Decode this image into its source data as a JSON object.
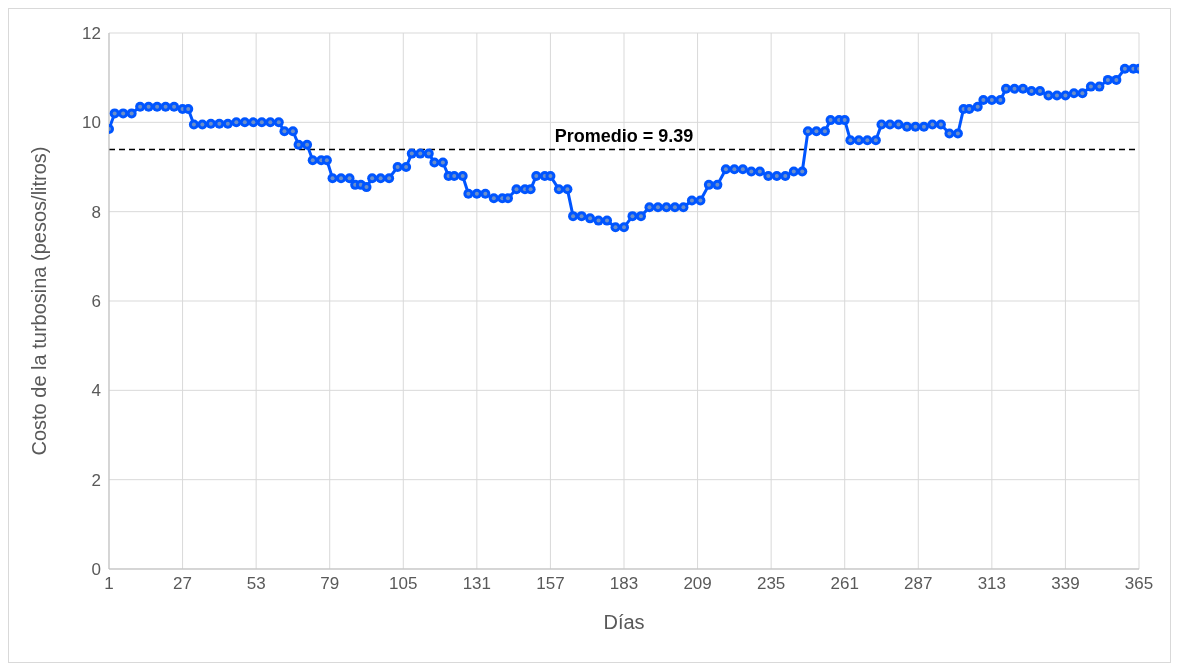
{
  "chart_data": {
    "type": "line",
    "xlabel": "Días",
    "ylabel": "Costo de la turbosina (pesos/litros)",
    "x": [
      1,
      3,
      6,
      9,
      12,
      15,
      18,
      21,
      24,
      27,
      29,
      31,
      34,
      37,
      40,
      43,
      46,
      49,
      52,
      55,
      58,
      61,
      63,
      66,
      68,
      71,
      73,
      76,
      78,
      80,
      83,
      86,
      88,
      90,
      92,
      94,
      97,
      100,
      103,
      106,
      108,
      111,
      114,
      116,
      119,
      121,
      123,
      126,
      128,
      131,
      134,
      137,
      140,
      142,
      145,
      148,
      150,
      152,
      155,
      157,
      160,
      163,
      165,
      168,
      171,
      174,
      177,
      180,
      183,
      186,
      189,
      192,
      195,
      198,
      201,
      204,
      207,
      210,
      213,
      216,
      219,
      222,
      225,
      228,
      231,
      234,
      237,
      240,
      243,
      246,
      248,
      251,
      254,
      256,
      259,
      261,
      263,
      266,
      269,
      272,
      274,
      277,
      280,
      283,
      286,
      289,
      292,
      295,
      298,
      301,
      303,
      305,
      308,
      310,
      313,
      316,
      318,
      321,
      324,
      327,
      330,
      333,
      336,
      339,
      342,
      345,
      348,
      351,
      354,
      357,
      360,
      363,
      365
    ],
    "series": [
      {
        "color": "#0055ff",
        "values": [
          9.85,
          10.2,
          10.2,
          10.2,
          10.35,
          10.35,
          10.35,
          10.35,
          10.35,
          10.3,
          10.3,
          9.95,
          9.95,
          9.97,
          9.97,
          9.97,
          10.0,
          10.0,
          10.0,
          10.0,
          10.0,
          10.0,
          9.8,
          9.8,
          9.5,
          9.5,
          9.15,
          9.15,
          9.15,
          8.75,
          8.75,
          8.75,
          8.6,
          8.6,
          8.55,
          8.75,
          8.75,
          8.75,
          9.0,
          9.0,
          9.3,
          9.3,
          9.3,
          9.1,
          9.1,
          8.8,
          8.8,
          8.8,
          8.4,
          8.4,
          8.4,
          8.3,
          8.3,
          8.3,
          8.5,
          8.5,
          8.5,
          8.8,
          8.8,
          8.8,
          8.5,
          8.5,
          7.9,
          7.9,
          7.85,
          7.8,
          7.8,
          7.65,
          7.65,
          7.9,
          7.9,
          8.1,
          8.1,
          8.1,
          8.1,
          8.1,
          8.25,
          8.25,
          8.6,
          8.6,
          8.95,
          8.95,
          8.95,
          8.9,
          8.9,
          8.8,
          8.8,
          8.8,
          8.9,
          8.9,
          9.8,
          9.8,
          9.8,
          10.05,
          10.05,
          10.05,
          9.6,
          9.6,
          9.6,
          9.6,
          9.95,
          9.95,
          9.95,
          9.9,
          9.9,
          9.9,
          9.95,
          9.95,
          9.75,
          9.75,
          10.3,
          10.3,
          10.35,
          10.5,
          10.5,
          10.5,
          10.75,
          10.75,
          10.75,
          10.7,
          10.7,
          10.6,
          10.6,
          10.6,
          10.65,
          10.65,
          10.8,
          10.8,
          10.95,
          10.95,
          11.2,
          11.2,
          11.2
        ]
      }
    ],
    "xlim": [
      1,
      365
    ],
    "xticks": [
      1,
      27,
      53,
      79,
      105,
      131,
      157,
      183,
      209,
      235,
      261,
      287,
      313,
      339,
      365
    ],
    "ylim": [
      0,
      12
    ],
    "yticks": [
      0,
      2,
      4,
      6,
      8,
      10,
      12
    ],
    "grid": true,
    "marker": "circle",
    "line_style": "solid",
    "legend": false,
    "ref_lines": [
      {
        "axis": "y",
        "value": 9.39,
        "label": "Promedio = 9.39",
        "color": "#000000",
        "line_style": "dashed"
      }
    ]
  }
}
